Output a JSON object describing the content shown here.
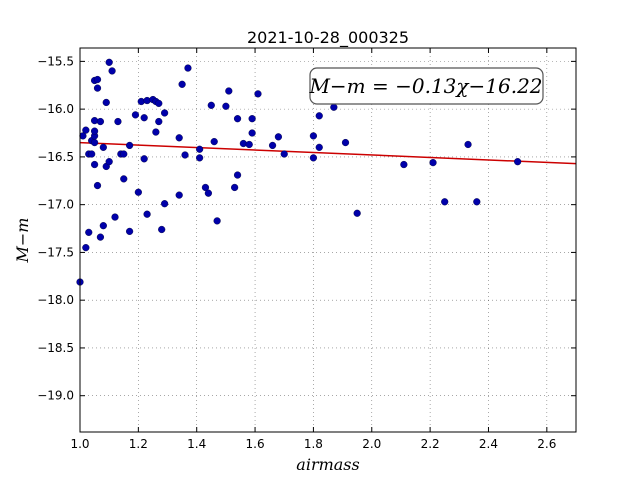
{
  "chart_data": {
    "type": "scatter",
    "title": "2021-10-28_000325",
    "xlabel": "airmass",
    "ylabel": "M−m",
    "annotation": "M−m = −0.13χ−16.22",
    "xlim": [
      1.0,
      2.7
    ],
    "ylim": [
      -19.38,
      -15.36
    ],
    "xticks": [
      1.0,
      1.2,
      1.4,
      1.6,
      1.8,
      2.0,
      2.2,
      2.4,
      2.6
    ],
    "xtick_labels": [
      "1.0",
      "1.2",
      "1.4",
      "1.6",
      "1.8",
      "2.0",
      "2.2",
      "2.4",
      "2.6"
    ],
    "yticks": [
      -15.5,
      -16.0,
      -16.5,
      -17.0,
      -17.5,
      -18.0,
      -18.5,
      -19.0
    ],
    "ytick_labels": [
      "−15.5",
      "−16.0",
      "−16.5",
      "−17.0",
      "−17.5",
      "−18.0",
      "−18.5",
      "−19.0"
    ],
    "grid": true,
    "fit": {
      "slope": -0.13,
      "intercept": -16.22,
      "color": "#cc0000"
    },
    "point_color": "#0000aa",
    "points": [
      [
        1.0,
        -17.81
      ],
      [
        1.01,
        -16.28
      ],
      [
        1.02,
        -16.22
      ],
      [
        1.02,
        -17.45
      ],
      [
        1.03,
        -17.29
      ],
      [
        1.03,
        -16.47
      ],
      [
        1.04,
        -16.47
      ],
      [
        1.04,
        -16.33
      ],
      [
        1.05,
        -16.58
      ],
      [
        1.05,
        -16.35
      ],
      [
        1.05,
        -16.28
      ],
      [
        1.05,
        -16.23
      ],
      [
        1.05,
        -16.12
      ],
      [
        1.05,
        -15.7
      ],
      [
        1.06,
        -16.8
      ],
      [
        1.06,
        -15.78
      ],
      [
        1.06,
        -15.69
      ],
      [
        1.07,
        -16.13
      ],
      [
        1.07,
        -17.34
      ],
      [
        1.08,
        -17.22
      ],
      [
        1.08,
        -16.4
      ],
      [
        1.09,
        -16.6
      ],
      [
        1.09,
        -15.93
      ],
      [
        1.1,
        -16.55
      ],
      [
        1.1,
        -15.51
      ],
      [
        1.11,
        -15.6
      ],
      [
        1.12,
        -17.13
      ],
      [
        1.13,
        -16.13
      ],
      [
        1.14,
        -16.47
      ],
      [
        1.15,
        -16.73
      ],
      [
        1.15,
        -16.47
      ],
      [
        1.17,
        -17.28
      ],
      [
        1.17,
        -16.38
      ],
      [
        1.19,
        -16.06
      ],
      [
        1.2,
        -16.87
      ],
      [
        1.21,
        -15.92
      ],
      [
        1.22,
        -16.52
      ],
      [
        1.22,
        -16.09
      ],
      [
        1.23,
        -15.91
      ],
      [
        1.23,
        -17.1
      ],
      [
        1.25,
        -15.9
      ],
      [
        1.26,
        -16.24
      ],
      [
        1.26,
        -15.92
      ],
      [
        1.27,
        -16.13
      ],
      [
        1.27,
        -15.94
      ],
      [
        1.28,
        -17.26
      ],
      [
        1.29,
        -16.04
      ],
      [
        1.29,
        -16.99
      ],
      [
        1.34,
        -16.3
      ],
      [
        1.34,
        -16.9
      ],
      [
        1.35,
        -15.74
      ],
      [
        1.36,
        -16.48
      ],
      [
        1.37,
        -15.57
      ],
      [
        1.41,
        -16.42
      ],
      [
        1.41,
        -16.51
      ],
      [
        1.43,
        -16.82
      ],
      [
        1.44,
        -16.88
      ],
      [
        1.45,
        -15.96
      ],
      [
        1.46,
        -16.34
      ],
      [
        1.47,
        -17.17
      ],
      [
        1.5,
        -15.97
      ],
      [
        1.51,
        -15.81
      ],
      [
        1.53,
        -16.82
      ],
      [
        1.54,
        -16.1
      ],
      [
        1.54,
        -16.69
      ],
      [
        1.56,
        -16.36
      ],
      [
        1.58,
        -16.37
      ],
      [
        1.59,
        -16.1
      ],
      [
        1.59,
        -16.25
      ],
      [
        1.61,
        -15.84
      ],
      [
        1.66,
        -16.38
      ],
      [
        1.68,
        -16.29
      ],
      [
        1.7,
        -16.47
      ],
      [
        1.8,
        -16.28
      ],
      [
        1.8,
        -16.51
      ],
      [
        1.82,
        -16.4
      ],
      [
        1.82,
        -16.07
      ],
      [
        1.87,
        -15.98
      ],
      [
        1.91,
        -16.35
      ],
      [
        1.95,
        -17.09
      ],
      [
        2.11,
        -16.58
      ],
      [
        2.21,
        -16.56
      ],
      [
        2.25,
        -16.97
      ],
      [
        2.33,
        -16.37
      ],
      [
        2.36,
        -16.97
      ],
      [
        2.5,
        -16.55
      ]
    ]
  }
}
